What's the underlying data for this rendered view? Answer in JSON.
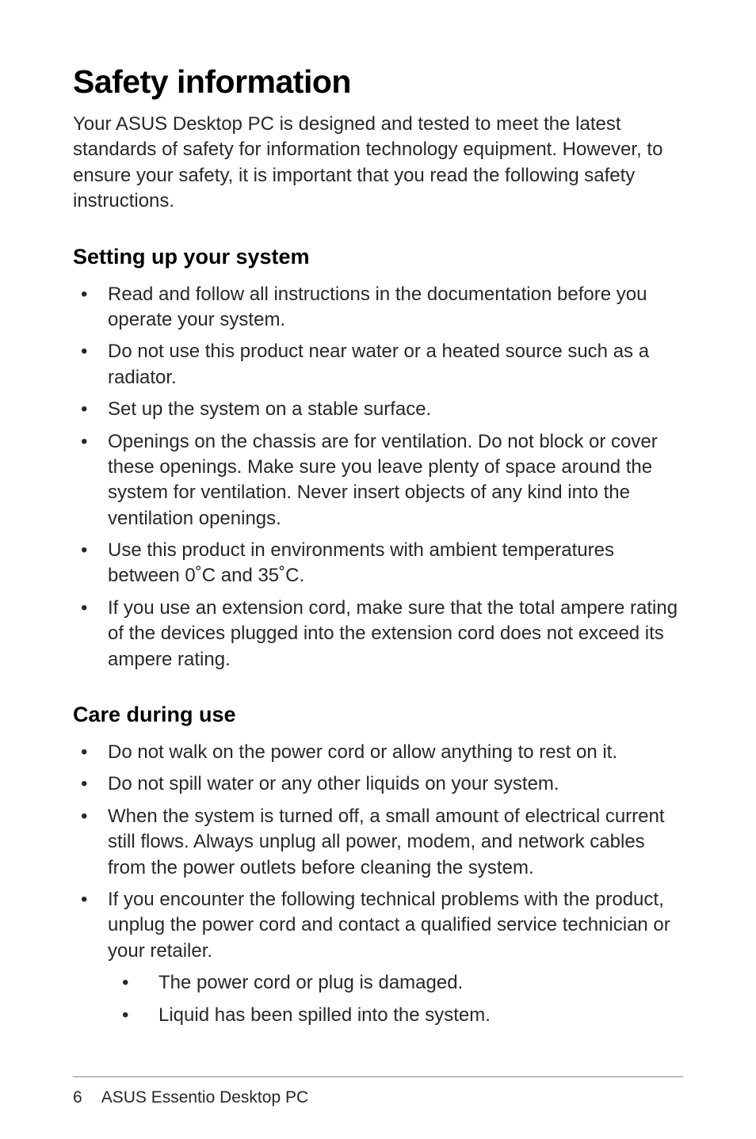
{
  "title": "Safety information",
  "intro": "Your ASUS Desktop PC is designed and tested to meet the latest standards of safety for information technology equipment. However, to ensure your safety, it is important that you read the following safety instructions.",
  "section1": {
    "heading": "Setting up your system",
    "items": [
      "Read and follow all instructions in the documentation before you operate your system.",
      "Do not use this product near water or a heated source such as a radiator.",
      "Set up the system on a stable surface.",
      "Openings on the chassis are for ventilation. Do not block or cover these openings. Make sure you leave plenty of space around the system for ventilation. Never insert objects of any kind into the ventilation openings.",
      "Use this product in environments with ambient temperatures between 0˚C and 35˚C.",
      "If you use an extension cord, make sure that the total ampere rating of the devices plugged into the extension cord does not exceed its ampere rating."
    ]
  },
  "section2": {
    "heading": "Care during use",
    "items": [
      "Do not walk on the power cord or allow anything to rest on it.",
      "Do not spill water or any other liquids on your system.",
      "When the system is turned off, a small amount of electrical current still flows. Always unplug all power, modem, and network cables from the power outlets before cleaning the system.",
      "If you encounter the following technical problems with the product, unplug the power cord and contact a qualified service technician or your retailer."
    ],
    "subitems": [
      "The power cord or plug is damaged.",
      "Liquid has been spilled into the system."
    ]
  },
  "footer": {
    "page": "6",
    "label": "ASUS Essentio Desktop PC"
  }
}
